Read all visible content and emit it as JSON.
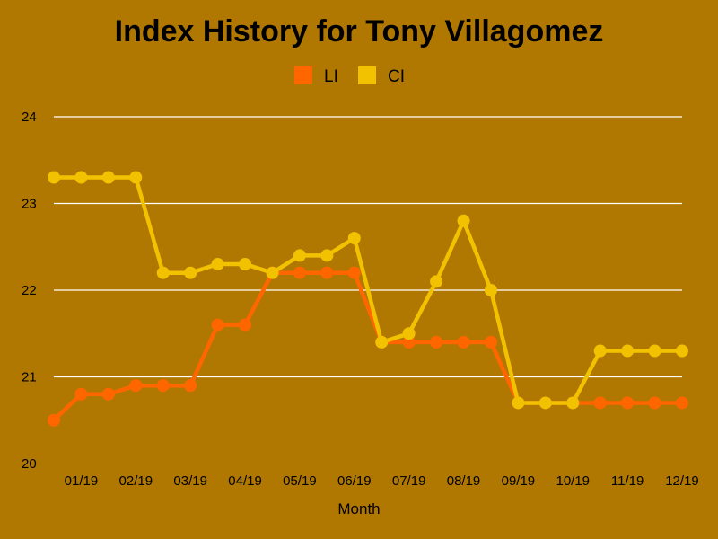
{
  "chart_data": {
    "type": "line",
    "title": "Index History for Tony Villagomez",
    "xlabel": "Month",
    "ylabel": "",
    "x_tick_labels": [
      "01/19",
      "02/19",
      "03/19",
      "04/19",
      "05/19",
      "06/19",
      "07/19",
      "08/19",
      "09/19",
      "10/19",
      "11/19",
      "12/19"
    ],
    "ylim": [
      20,
      24
    ],
    "y_ticks": [
      20,
      21,
      22,
      23,
      24
    ],
    "grid": true,
    "legend_position": "top-center",
    "series": [
      {
        "name": "LI",
        "color": "#ff6600",
        "values": [
          20.5,
          20.8,
          20.8,
          20.9,
          20.9,
          20.9,
          21.6,
          21.6,
          22.2,
          22.2,
          22.2,
          22.2,
          21.4,
          21.4,
          21.4,
          21.4,
          21.4,
          20.7,
          20.7,
          20.7,
          20.7,
          20.7,
          20.7,
          20.7
        ]
      },
      {
        "name": "CI",
        "color": "#f2c200",
        "values": [
          23.3,
          23.3,
          23.3,
          23.3,
          22.2,
          22.2,
          22.3,
          22.3,
          22.2,
          22.4,
          22.4,
          22.6,
          21.4,
          21.5,
          22.1,
          22.8,
          22.0,
          20.7,
          20.7,
          20.7,
          21.3,
          21.3,
          21.3,
          21.3
        ]
      }
    ]
  }
}
